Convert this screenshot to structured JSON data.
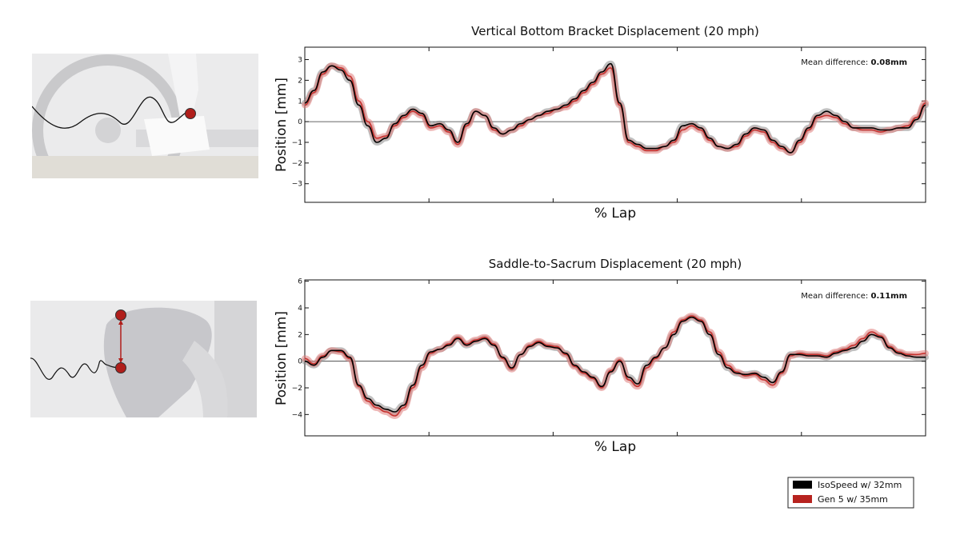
{
  "colors": {
    "series_0": "#000000",
    "series_0_band": "#8c8c8c",
    "series_1": "#c8322f",
    "series_1_band": "#e07d7b"
  },
  "illustrations": [
    {
      "icon": "bike-bottom-bracket-photo",
      "marker": "red-dot-marker",
      "trace": "displacement-trace"
    },
    {
      "icon": "rider-saddle-sacrum-photo",
      "marker": "red-dot-marker",
      "trace": "displacement-trace"
    }
  ],
  "legend": {
    "items": [
      {
        "label": "IsoSpeed w/ 32mm",
        "color": "#000000"
      },
      {
        "label": "Gen 5 w/ 35mm",
        "color": "#b7231f"
      }
    ],
    "placement": "bottom-right"
  },
  "chart_data": [
    {
      "type": "line",
      "title": "Vertical Bottom Bracket Displacement (20 mph)",
      "xlabel": "% Lap",
      "ylabel": "Position [mm]",
      "annotation": {
        "label": "Mean difference: ",
        "value": "0.08mm"
      },
      "xlim": [
        0,
        100
      ],
      "ylim": [
        -3.9,
        3.6
      ],
      "yticks": [
        -3,
        -2,
        -1,
        0,
        1,
        2,
        3
      ],
      "ytick_labels": [
        "−3",
        "−2",
        "−1",
        "0",
        "1",
        "2",
        "3"
      ],
      "xticks": [
        0,
        20,
        40,
        60,
        80,
        100
      ],
      "grid": false,
      "zero_line": true,
      "x": [
        0,
        2,
        3,
        4,
        5,
        6,
        8,
        9,
        10,
        11,
        12,
        13,
        14,
        15,
        16,
        17,
        18,
        19,
        20,
        21,
        22,
        23,
        24,
        25,
        26,
        27,
        28,
        29,
        30,
        31,
        32,
        33,
        34,
        35,
        36,
        38,
        40,
        42,
        44,
        45,
        46,
        47,
        48,
        49,
        50,
        51,
        52,
        53,
        54,
        55,
        56,
        57,
        58,
        60,
        62,
        64,
        65,
        66,
        67,
        68,
        69,
        70,
        71,
        72,
        73,
        74,
        75,
        76,
        77,
        78,
        80,
        82,
        83,
        84,
        85,
        86,
        87,
        88,
        89,
        90,
        91,
        92,
        93,
        94,
        95,
        96,
        97,
        98,
        99,
        100
      ],
      "series": [
        {
          "name": "IsoSpeed w/ 32mm",
          "values": [
            0.9,
            1.5,
            2.4,
            2.7,
            2.5,
            2.0,
            0.8,
            -0.2,
            -1.0,
            -0.8,
            -0.1,
            0.3,
            0.6,
            0.4,
            -0.2,
            -0.1,
            -0.4,
            -1.0,
            -0.1,
            0.5,
            0.3,
            -0.3,
            -0.6,
            -0.4,
            -0.1,
            0.1,
            0.3,
            0.5,
            0.6,
            0.8,
            1.1,
            1.5,
            1.9,
            2.4,
            2.8,
            0.9,
            -0.9,
            -1.1,
            -1.3,
            -1.3,
            -1.2,
            -0.9,
            -0.2,
            -0.1,
            -0.3,
            -0.8,
            -1.2,
            -1.3,
            -1.1,
            -0.6,
            -0.3,
            -0.4,
            -0.9,
            -1.2,
            -1.5,
            -0.9,
            -0.3,
            0.3,
            0.5,
            0.3,
            0.0,
            -0.3,
            -0.3,
            -0.3,
            -0.4,
            -0.4,
            -0.3,
            -0.3,
            0.1,
            0.8,
            0,
            0,
            0,
            0,
            0,
            0,
            0,
            0,
            0,
            0,
            0,
            0,
            0,
            0,
            0,
            0,
            0,
            0,
            0,
            0
          ]
        },
        {
          "name": "Gen 5 w/ 35mm",
          "values": [
            0.8,
            1.4,
            2.3,
            2.7,
            2.6,
            2.2,
            1.0,
            0.0,
            -0.8,
            -0.7,
            -0.2,
            0.2,
            0.5,
            0.3,
            -0.3,
            -0.2,
            -0.5,
            -1.1,
            -0.2,
            0.5,
            0.3,
            -0.4,
            -0.6,
            -0.4,
            -0.2,
            0.1,
            0.3,
            0.4,
            0.6,
            0.7,
            1.0,
            1.4,
            1.8,
            2.3,
            2.6,
            0.8,
            -1.0,
            -1.2,
            -1.4,
            -1.4,
            -1.2,
            -1.0,
            -0.4,
            -0.2,
            -0.4,
            -0.9,
            -1.2,
            -1.3,
            -1.2,
            -0.7,
            -0.4,
            -0.5,
            -1.0,
            -1.3,
            -1.5,
            -1.0,
            -0.4,
            0.2,
            0.3,
            0.2,
            -0.1,
            -0.3,
            -0.4,
            -0.4,
            -0.5,
            -0.4,
            -0.3,
            -0.2,
            0.2,
            0.9,
            0,
            0,
            0,
            0,
            0,
            0,
            0,
            0,
            0,
            0,
            0,
            0,
            0,
            0,
            0,
            0,
            0,
            0,
            0,
            0
          ]
        }
      ]
    },
    {
      "type": "line",
      "title": "Saddle-to-Sacrum Displacement (20 mph)",
      "xlabel": "% Lap",
      "ylabel": "Position [mm]",
      "annotation": {
        "label": "Mean difference: ",
        "value": "0.11mm"
      },
      "xlim": [
        0,
        100
      ],
      "ylim": [
        -5.6,
        6.1
      ],
      "yticks": [
        -4,
        -2,
        0,
        2,
        4,
        6
      ],
      "ytick_labels": [
        "−4",
        "−2",
        "0",
        "2",
        "4",
        "6"
      ],
      "xticks": [
        0,
        20,
        40,
        60,
        80,
        100
      ],
      "grid": false,
      "zero_line": true,
      "x": [
        0,
        2,
        3,
        4,
        5,
        6,
        8,
        9,
        10,
        11,
        12,
        13,
        14,
        15,
        16,
        17,
        18,
        19,
        20,
        21,
        22,
        23,
        24,
        25,
        26,
        27,
        28,
        29,
        30,
        31,
        32,
        33,
        34,
        35,
        36,
        38,
        40,
        42,
        44,
        45,
        46,
        47,
        48,
        49,
        50,
        51,
        52,
        53,
        54,
        55,
        56,
        57,
        58,
        60,
        62,
        64,
        65,
        66,
        67,
        68,
        69,
        70,
        71,
        72,
        73,
        74,
        75,
        76,
        77,
        78,
        80,
        82,
        83,
        84,
        85,
        86,
        87,
        88,
        89,
        90,
        91,
        92,
        93,
        94,
        95,
        96,
        97,
        98,
        99,
        100
      ],
      "series": [
        {
          "name": "IsoSpeed w/ 32mm",
          "values": [
            0.0,
            -0.3,
            0.3,
            0.8,
            0.8,
            0.3,
            -1.8,
            -2.8,
            -3.3,
            -3.6,
            -3.8,
            -3.3,
            -1.8,
            -0.3,
            0.7,
            0.9,
            1.2,
            1.7,
            1.2,
            1.5,
            1.7,
            1.2,
            0.3,
            -0.5,
            0.5,
            1.1,
            1.4,
            1.1,
            1.0,
            0.6,
            -0.3,
            -0.8,
            -1.2,
            -1.9,
            -0.8,
            0.0,
            -1.2,
            -1.7,
            -0.3,
            0.3,
            1.0,
            2.0,
            3.0,
            3.3,
            3.0,
            2.0,
            0.5,
            -0.5,
            -0.9,
            -1.0,
            -0.9,
            -1.2,
            -1.6,
            -0.8,
            0.5,
            0.5,
            0.4,
            0.4,
            0.3,
            0.6,
            0.8,
            1.0,
            1.5,
            2.0,
            1.8,
            1.0,
            0.6,
            0.4,
            0.3,
            0.3,
            0,
            0,
            0,
            0,
            0,
            0,
            0,
            0,
            0,
            0,
            0,
            0,
            0,
            0,
            0,
            0,
            0,
            0,
            0,
            0
          ]
        },
        {
          "name": "Gen 5 w/ 35mm",
          "values": [
            0.2,
            -0.2,
            0.4,
            0.8,
            0.7,
            0.2,
            -1.9,
            -3.0,
            -3.5,
            -3.8,
            -4.1,
            -3.5,
            -2.0,
            -0.5,
            0.6,
            0.9,
            1.3,
            1.8,
            1.3,
            1.6,
            1.8,
            1.3,
            0.2,
            -0.6,
            0.5,
            1.2,
            1.5,
            1.2,
            1.1,
            0.5,
            -0.4,
            -0.9,
            -1.3,
            -2.0,
            -0.7,
            0.1,
            -1.4,
            -1.9,
            -0.5,
            0.2,
            1.0,
            2.2,
            3.1,
            3.4,
            3.1,
            2.2,
            0.7,
            -0.3,
            -0.8,
            -1.1,
            -1.0,
            -1.4,
            -1.8,
            -0.9,
            0.4,
            0.6,
            0.5,
            0.5,
            0.4,
            0.7,
            0.9,
            1.2,
            1.7,
            2.2,
            1.9,
            1.1,
            0.7,
            0.5,
            0.5,
            0.6,
            0,
            0,
            0,
            0,
            0,
            0,
            0,
            0,
            0,
            0,
            0,
            0,
            0,
            0,
            0,
            0,
            0,
            0,
            0,
            0
          ]
        }
      ]
    }
  ]
}
